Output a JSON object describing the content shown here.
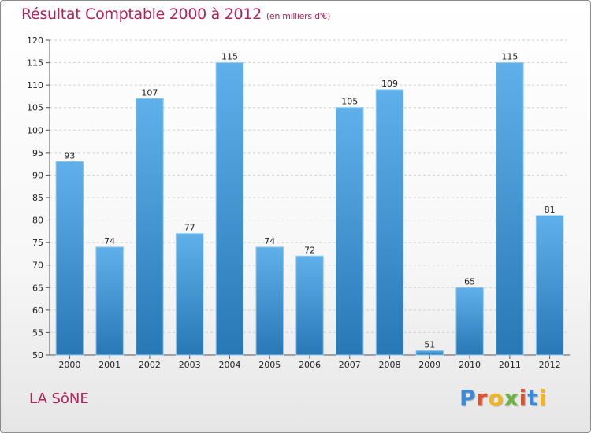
{
  "header": {
    "title": "Résultat Comptable 2000 à 2012",
    "unit": "(en milliers d'€)"
  },
  "commune": "LA SôNE",
  "logo": {
    "text": "Proxiti",
    "letter_colors": [
      "#3d8ad6",
      "#e8502a",
      "#f2b51e",
      "#6cb33f",
      "#e8502a",
      "#3d8ad6",
      "#f2b51e"
    ]
  },
  "colors": {
    "title": "#b0235a",
    "bar_top": "#5fb0ea",
    "bar_bottom": "#2878b6",
    "grid": "#cfcfcf"
  },
  "chart_data": {
    "type": "bar",
    "title": "Résultat Comptable 2000 à 2012",
    "subtitle": "(en milliers d'€)",
    "xlabel": "",
    "ylabel": "",
    "categories": [
      "2000",
      "2001",
      "2002",
      "2003",
      "2004",
      "2005",
      "2006",
      "2007",
      "2008",
      "2009",
      "2010",
      "2011",
      "2012"
    ],
    "values": [
      93,
      74,
      107,
      77,
      115,
      74,
      72,
      105,
      109,
      51,
      65,
      115,
      81
    ],
    "ylim": [
      50,
      120
    ],
    "yticks": [
      50,
      55,
      60,
      65,
      70,
      75,
      80,
      85,
      90,
      95,
      100,
      105,
      110,
      115,
      120
    ],
    "grid": true,
    "legend": "none"
  }
}
